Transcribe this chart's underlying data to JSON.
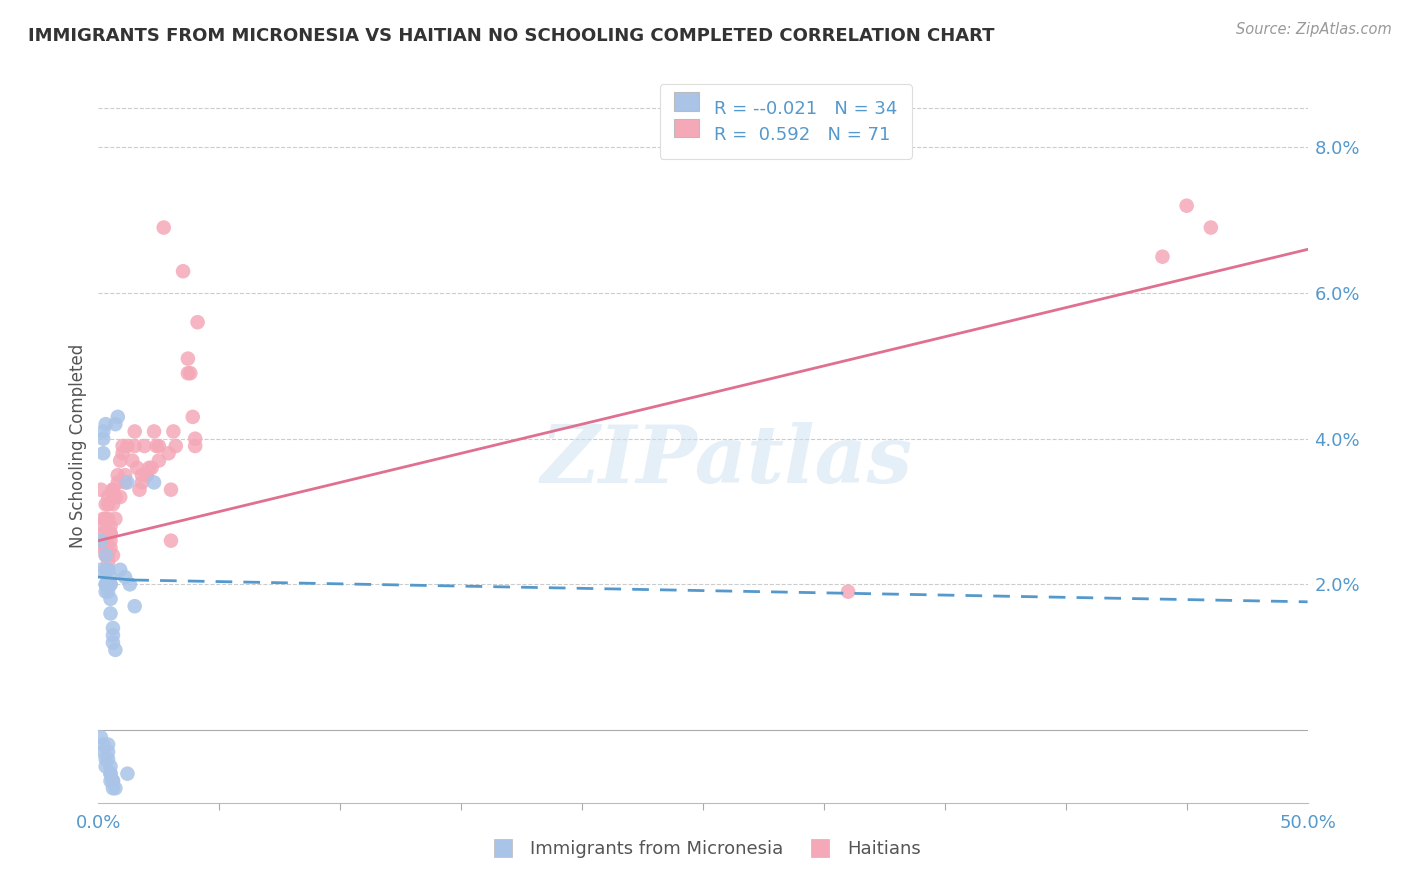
{
  "title": "IMMIGRANTS FROM MICRONESIA VS HAITIAN NO SCHOOLING COMPLETED CORRELATION CHART",
  "source": "Source: ZipAtlas.com",
  "ylabel": "No Schooling Completed",
  "xlim": [
    0.0,
    0.5
  ],
  "ylim": [
    -0.01,
    0.088
  ],
  "xticks": [
    0.0,
    0.5
  ],
  "xtick_labels": [
    "0.0%",
    "50.0%"
  ],
  "xticks_minor": [
    0.05,
    0.1,
    0.15,
    0.2,
    0.25,
    0.3,
    0.35,
    0.4,
    0.45
  ],
  "yticks_right": [
    0.02,
    0.04,
    0.06,
    0.08
  ],
  "ytick_labels_right": [
    "2.0%",
    "4.0%",
    "6.0%",
    "8.0%"
  ],
  "legend_r1": "-0.021",
  "legend_n1": "34",
  "legend_r2": "0.592",
  "legend_n2": "71",
  "color_blue": "#aac4e8",
  "color_pink": "#f4a8b8",
  "color_blue_line": "#5599cc",
  "color_pink_line": "#e07090",
  "watermark": "ZIPatlas",
  "scatter_blue": [
    [
      0.001,
      0.026
    ],
    [
      0.001,
      0.022
    ],
    [
      0.002,
      0.04
    ],
    [
      0.002,
      0.038
    ],
    [
      0.002,
      0.041
    ],
    [
      0.003,
      0.042
    ],
    [
      0.003,
      0.02
    ],
    [
      0.003,
      0.024
    ],
    [
      0.003,
      0.02
    ],
    [
      0.003,
      0.022
    ],
    [
      0.003,
      0.019
    ],
    [
      0.004,
      0.022
    ],
    [
      0.004,
      0.02
    ],
    [
      0.004,
      0.022
    ],
    [
      0.004,
      0.019
    ],
    [
      0.004,
      0.02
    ],
    [
      0.005,
      0.021
    ],
    [
      0.005,
      0.02
    ],
    [
      0.005,
      0.02
    ],
    [
      0.005,
      0.018
    ],
    [
      0.005,
      0.016
    ],
    [
      0.006,
      0.014
    ],
    [
      0.006,
      0.013
    ],
    [
      0.006,
      0.012
    ],
    [
      0.007,
      0.011
    ],
    [
      0.007,
      0.042
    ],
    [
      0.008,
      0.043
    ],
    [
      0.009,
      0.022
    ],
    [
      0.011,
      0.021
    ],
    [
      0.012,
      0.034
    ],
    [
      0.013,
      0.02
    ],
    [
      0.015,
      0.017
    ],
    [
      0.023,
      0.034
    ],
    [
      0.002,
      -0.002
    ]
  ],
  "scatter_blue_low": [
    [
      0.001,
      -0.001
    ],
    [
      0.002,
      -0.003
    ],
    [
      0.003,
      -0.004
    ],
    [
      0.003,
      -0.005
    ],
    [
      0.004,
      -0.003
    ],
    [
      0.004,
      -0.004
    ],
    [
      0.004,
      -0.002
    ],
    [
      0.005,
      -0.005
    ],
    [
      0.005,
      -0.007
    ],
    [
      0.005,
      -0.006
    ],
    [
      0.005,
      -0.006
    ],
    [
      0.006,
      -0.007
    ],
    [
      0.006,
      -0.007
    ],
    [
      0.006,
      -0.008
    ],
    [
      0.007,
      -0.008
    ],
    [
      0.012,
      -0.006
    ]
  ],
  "scatter_pink": [
    [
      0.001,
      0.033
    ],
    [
      0.002,
      0.025
    ],
    [
      0.002,
      0.028
    ],
    [
      0.002,
      0.029
    ],
    [
      0.002,
      0.027
    ],
    [
      0.003,
      0.029
    ],
    [
      0.003,
      0.026
    ],
    [
      0.003,
      0.025
    ],
    [
      0.003,
      0.031
    ],
    [
      0.003,
      0.024
    ],
    [
      0.004,
      0.023
    ],
    [
      0.004,
      0.024
    ],
    [
      0.004,
      0.029
    ],
    [
      0.004,
      0.031
    ],
    [
      0.004,
      0.032
    ],
    [
      0.005,
      0.026
    ],
    [
      0.005,
      0.025
    ],
    [
      0.005,
      0.027
    ],
    [
      0.005,
      0.027
    ],
    [
      0.005,
      0.028
    ],
    [
      0.006,
      0.033
    ],
    [
      0.006,
      0.031
    ],
    [
      0.006,
      0.032
    ],
    [
      0.006,
      0.033
    ],
    [
      0.006,
      0.024
    ],
    [
      0.007,
      0.032
    ],
    [
      0.007,
      0.032
    ],
    [
      0.007,
      0.029
    ],
    [
      0.008,
      0.034
    ],
    [
      0.008,
      0.035
    ],
    [
      0.009,
      0.037
    ],
    [
      0.009,
      0.032
    ],
    [
      0.01,
      0.039
    ],
    [
      0.01,
      0.038
    ],
    [
      0.011,
      0.035
    ],
    [
      0.011,
      0.034
    ],
    [
      0.012,
      0.039
    ],
    [
      0.014,
      0.037
    ],
    [
      0.015,
      0.041
    ],
    [
      0.015,
      0.039
    ],
    [
      0.016,
      0.036
    ],
    [
      0.017,
      0.033
    ],
    [
      0.018,
      0.035
    ],
    [
      0.018,
      0.034
    ],
    [
      0.019,
      0.039
    ],
    [
      0.02,
      0.035
    ],
    [
      0.02,
      0.035
    ],
    [
      0.021,
      0.036
    ],
    [
      0.022,
      0.036
    ],
    [
      0.023,
      0.041
    ],
    [
      0.024,
      0.039
    ],
    [
      0.025,
      0.039
    ],
    [
      0.025,
      0.037
    ],
    [
      0.027,
      0.069
    ],
    [
      0.029,
      0.038
    ],
    [
      0.03,
      0.033
    ],
    [
      0.03,
      0.026
    ],
    [
      0.031,
      0.041
    ],
    [
      0.032,
      0.039
    ],
    [
      0.035,
      0.063
    ],
    [
      0.037,
      0.051
    ],
    [
      0.037,
      0.049
    ],
    [
      0.038,
      0.049
    ],
    [
      0.039,
      0.043
    ],
    [
      0.04,
      0.04
    ],
    [
      0.04,
      0.039
    ],
    [
      0.041,
      0.056
    ],
    [
      0.31,
      0.019
    ],
    [
      0.44,
      0.065
    ],
    [
      0.45,
      0.072
    ],
    [
      0.46,
      0.069
    ]
  ],
  "blue_trendline_solid": [
    0.0,
    0.014,
    0.021,
    0.0206
  ],
  "blue_trendline_dash": [
    0.014,
    0.5,
    0.0206,
    0.0176
  ],
  "pink_trendline": [
    0.0,
    0.5,
    0.026,
    0.066
  ],
  "background_color": "#ffffff",
  "grid_color": "#cccccc",
  "tick_color": "#999999"
}
